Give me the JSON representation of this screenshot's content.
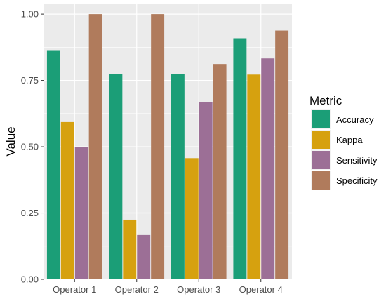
{
  "chart_data": {
    "type": "bar",
    "categories": [
      "Operator 1",
      "Operator 2",
      "Operator 3",
      "Operator 4"
    ],
    "series": [
      {
        "name": "Accuracy",
        "color": "#1b9e77",
        "values": [
          0.864,
          0.773,
          0.773,
          0.909
        ]
      },
      {
        "name": "Kappa",
        "color": "#d6a10f",
        "values": [
          0.593,
          0.225,
          0.457,
          0.772
        ]
      },
      {
        "name": "Sensitivity",
        "color": "#9c6f96",
        "values": [
          0.5,
          0.167,
          0.667,
          0.833
        ]
      },
      {
        "name": "Specificity",
        "color": "#b07b5c",
        "values": [
          1.0,
          1.0,
          0.812,
          0.938
        ]
      }
    ],
    "title": "",
    "xlabel": "",
    "ylabel": "Value",
    "ylim": [
      0,
      1.04
    ],
    "yticks": [
      "0.00",
      "0.25",
      "0.50",
      "0.75",
      "1.00"
    ],
    "grid": true,
    "legend": {
      "title": "Metric",
      "placement": "right"
    },
    "panel_background": "#ebebeb"
  }
}
